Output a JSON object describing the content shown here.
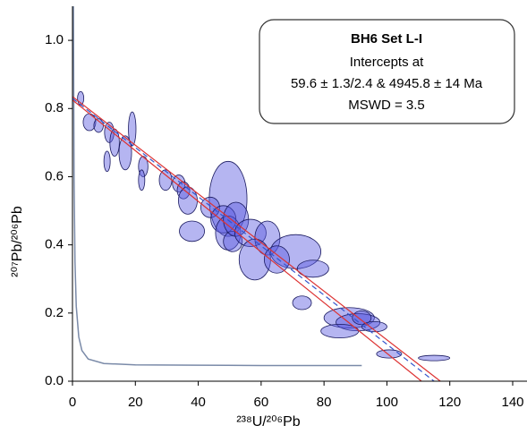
{
  "chart_data": {
    "type": "ellipse",
    "x_label": "²³⁸U/²⁰⁶Pb",
    "y_label": "²⁰⁷Pb/²⁰⁶Pb",
    "annotation": {
      "title": "BH6 Set L-I",
      "lines": [
        "Intercepts at",
        "59.6 ± 1.3/2.4 & 4945.8 ± 14  Ma",
        "MSWD = 3.5"
      ]
    },
    "xlim": [
      0,
      140
    ],
    "ylim": [
      0,
      1.1
    ],
    "xticks": [
      0,
      20,
      40,
      60,
      80,
      100,
      120,
      140
    ],
    "yticks": [
      {
        "value": 0,
        "label": "0.0"
      },
      0.2,
      0.4,
      0.6,
      0.8,
      {
        "value": 1,
        "label": "1.0"
      }
    ],
    "ellipse_color": "#5a5ae0",
    "ellipses": [
      {
        "x": 19,
        "y": 0.74,
        "x_err": 1.2,
        "y_err": 0.05
      },
      {
        "x": 5.4,
        "y": 0.76,
        "x_err": 2,
        "y_err": 0.025
      },
      {
        "x": 8.3,
        "y": 0.75,
        "x_err": 1.5,
        "y_err": 0.02
      },
      {
        "x": 11.7,
        "y": 0.73,
        "x_err": 1.5,
        "y_err": 0.03
      },
      {
        "x": 13.4,
        "y": 0.7,
        "x_err": 1.5,
        "y_err": 0.04
      },
      {
        "x": 11,
        "y": 0.645,
        "x_err": 1,
        "y_err": 0.03
      },
      {
        "x": 16.8,
        "y": 0.67,
        "x_err": 2,
        "y_err": 0.05
      },
      {
        "x": 22.5,
        "y": 0.63,
        "x_err": 1.5,
        "y_err": 0.03
      },
      {
        "x": 22,
        "y": 0.59,
        "x_err": 1,
        "y_err": 0.03
      },
      {
        "x": 29.6,
        "y": 0.59,
        "x_err": 2,
        "y_err": 0.03
      },
      {
        "x": 33.8,
        "y": 0.58,
        "x_err": 2,
        "y_err": 0.025
      },
      {
        "x": 35.3,
        "y": 0.56,
        "x_err": 2,
        "y_err": 0.025
      },
      {
        "x": 36.7,
        "y": 0.53,
        "x_err": 3,
        "y_err": 0.04
      },
      {
        "x": 49.5,
        "y": 0.535,
        "x_err": 6,
        "y_err": 0.11
      },
      {
        "x": 43.8,
        "y": 0.51,
        "x_err": 3,
        "y_err": 0.03
      },
      {
        "x": 38,
        "y": 0.44,
        "x_err": 4,
        "y_err": 0.03
      },
      {
        "x": 48,
        "y": 0.475,
        "x_err": 4,
        "y_err": 0.04
      },
      {
        "x": 49.5,
        "y": 0.435,
        "x_err": 4,
        "y_err": 0.05
      },
      {
        "x": 51,
        "y": 0.41,
        "x_err": 3,
        "y_err": 0.03
      },
      {
        "x": 52,
        "y": 0.475,
        "x_err": 4,
        "y_err": 0.05
      },
      {
        "x": 56.6,
        "y": 0.435,
        "x_err": 5,
        "y_err": 0.04
      },
      {
        "x": 62,
        "y": 0.42,
        "x_err": 4,
        "y_err": 0.05
      },
      {
        "x": 58,
        "y": 0.357,
        "x_err": 5,
        "y_err": 0.06
      },
      {
        "x": 71,
        "y": 0.38,
        "x_err": 8,
        "y_err": 0.05
      },
      {
        "x": 65,
        "y": 0.357,
        "x_err": 4,
        "y_err": 0.04
      },
      {
        "x": 76.5,
        "y": 0.33,
        "x_err": 5,
        "y_err": 0.025
      },
      {
        "x": 73,
        "y": 0.23,
        "x_err": 3,
        "y_err": 0.02
      },
      {
        "x": 88,
        "y": 0.186,
        "x_err": 8,
        "y_err": 0.03
      },
      {
        "x": 90.8,
        "y": 0.173,
        "x_err": 7,
        "y_err": 0.025
      },
      {
        "x": 92,
        "y": 0.186,
        "x_err": 3,
        "y_err": 0.02
      },
      {
        "x": 85,
        "y": 0.147,
        "x_err": 6,
        "y_err": 0.02
      },
      {
        "x": 96,
        "y": 0.16,
        "x_err": 4,
        "y_err": 0.015
      },
      {
        "x": 100.7,
        "y": 0.08,
        "x_err": 4,
        "y_err": 0.012
      },
      {
        "x": 115,
        "y": 0.068,
        "x_err": 5,
        "y_err": 0.008
      },
      {
        "x": 2.6,
        "y": 0.83,
        "x_err": 1,
        "y_err": 0.02
      }
    ],
    "concordia": {
      "color": "#7a8aa8",
      "x": [
        0.3,
        0.5,
        0.8,
        1.2,
        2,
        3,
        5,
        10,
        20,
        40,
        60,
        92
      ],
      "y": [
        1.1,
        0.6,
        0.35,
        0.22,
        0.13,
        0.09,
        0.065,
        0.052,
        0.048,
        0.047,
        0.046,
        0.046
      ]
    },
    "fit_lines": [
      {
        "x": [
          0,
          115
        ],
        "y": [
          0.83,
          0
        ],
        "color": "#3355cc",
        "dashed": true
      },
      {
        "x": [
          0,
          117
        ],
        "y": [
          0.835,
          0
        ],
        "color": "#dd3333",
        "dashed": false
      },
      {
        "x": [
          0,
          111
        ],
        "y": [
          0.825,
          0
        ],
        "color": "#dd3333",
        "dashed": false
      }
    ]
  }
}
